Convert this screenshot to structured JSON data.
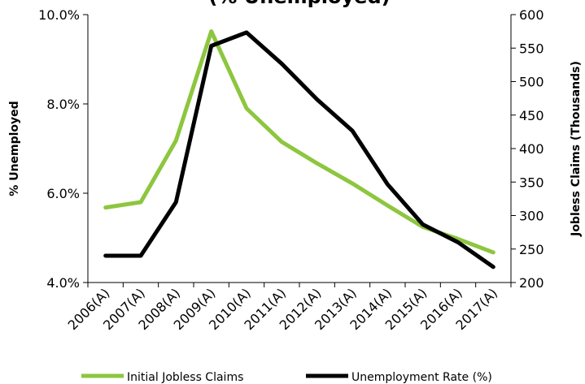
{
  "chart_data": {
    "type": "line",
    "title": "(% Unemployed)",
    "categories": [
      "2006(A)",
      "2007(A)",
      "2008(A)",
      "2009(A)",
      "2010(A)",
      "2011(A)",
      "2012(A)",
      "2013(A)",
      "2014(A)",
      "2015(A)",
      "2016(A)",
      "2017(A)"
    ],
    "series": [
      {
        "name": "Initial Jobless Claims",
        "axis": "right",
        "color": "#8dc63f",
        "values": [
          312,
          320,
          412,
          575,
          460,
          410,
          378,
          348,
          315,
          283,
          265,
          245
        ]
      },
      {
        "name": "Unemployment Rate (%)",
        "axis": "left",
        "color": "#000000",
        "values": [
          4.6,
          4.6,
          5.8,
          9.3,
          9.6,
          8.9,
          8.1,
          7.4,
          6.2,
          5.3,
          4.9,
          4.35
        ]
      }
    ],
    "y_left": {
      "label": "% Unemployed",
      "ylim": [
        4.0,
        10.0
      ],
      "ticks": [
        "4.0%",
        "6.0%",
        "8.0%",
        "10.0%"
      ],
      "tick_values": [
        4.0,
        6.0,
        8.0,
        10.0
      ]
    },
    "y_right": {
      "label": "Jobless Claims (Thousands)",
      "ylim": [
        200,
        600
      ],
      "ticks": [
        "200",
        "250",
        "300",
        "350",
        "400",
        "450",
        "500",
        "550",
        "600"
      ],
      "tick_values": [
        200,
        250,
        300,
        350,
        400,
        450,
        500,
        550,
        600
      ]
    },
    "grid": false,
    "legend_position": "bottom"
  }
}
